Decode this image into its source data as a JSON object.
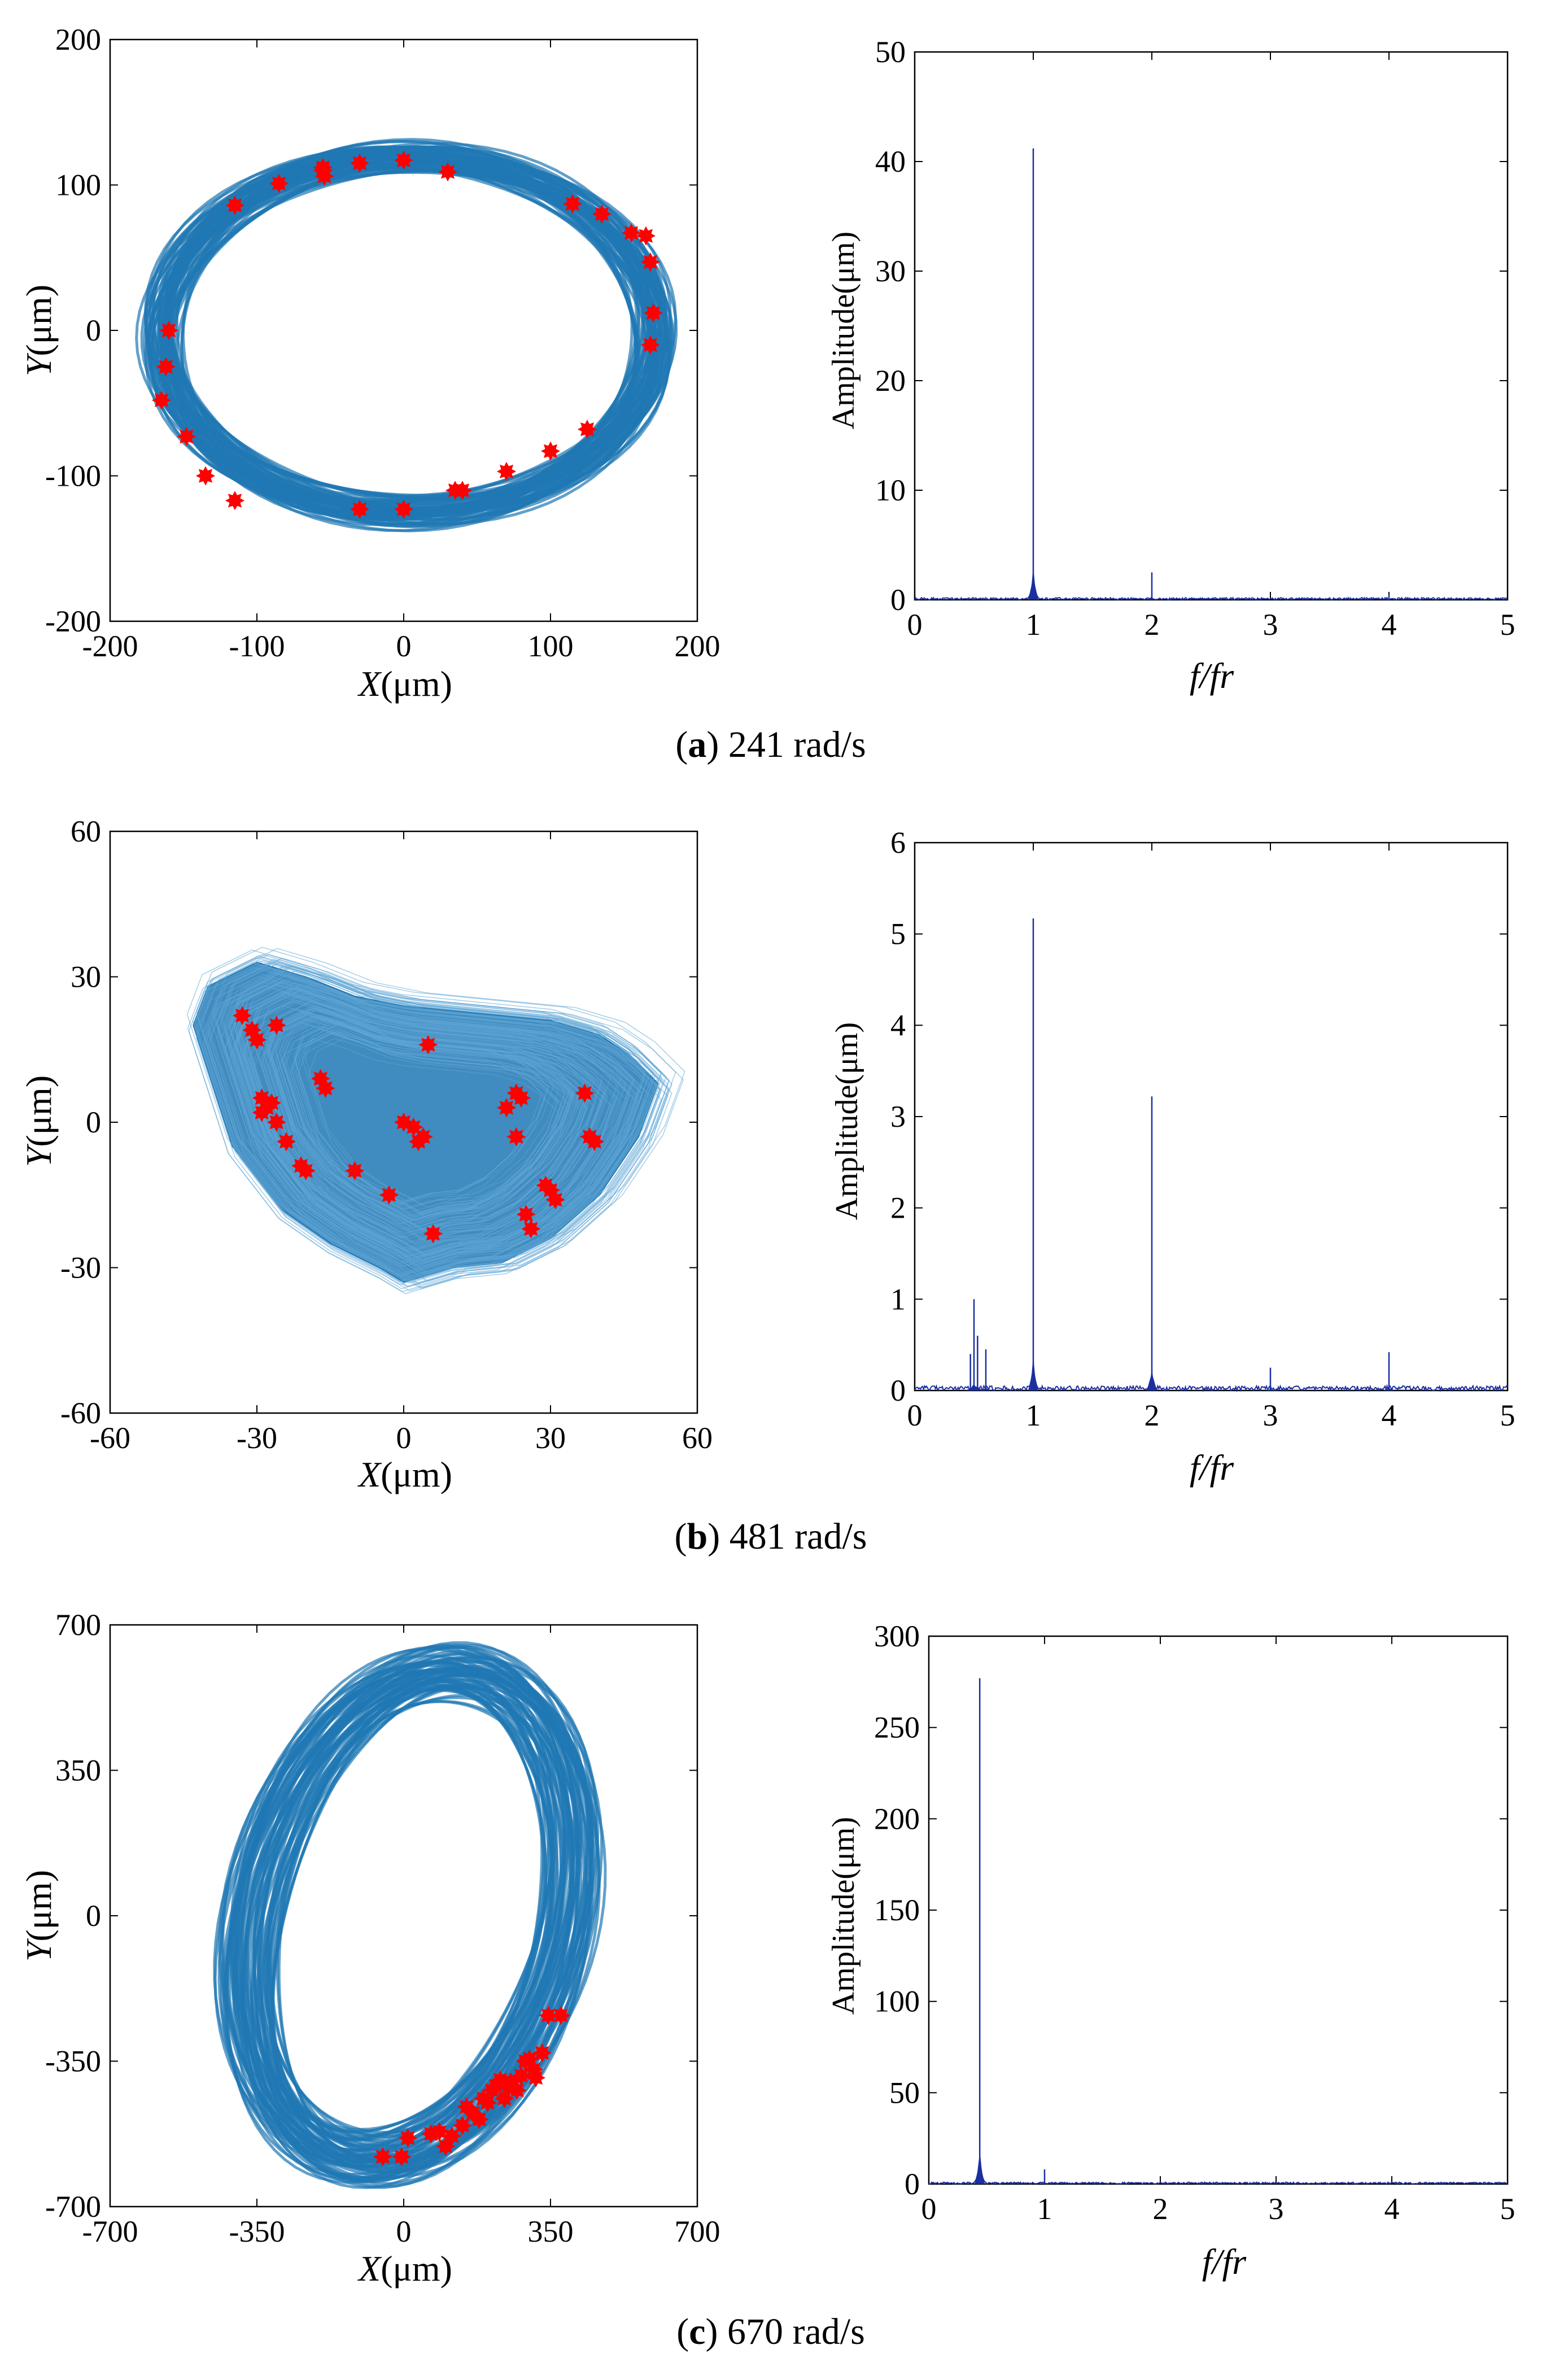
{
  "figure": {
    "rows": [
      {
        "caption": {
          "open": "(",
          "letter": "a",
          "close": ")",
          "text": " 241 rad/s"
        },
        "orbit": {
          "xlabel_var": "X",
          "ylabel_var": "Y",
          "unit": "(μm)"
        },
        "spectrum": {
          "ylabel": "Amplitude(μm)",
          "xlabel": "f/fr"
        }
      },
      {
        "caption": {
          "open": "(",
          "letter": "b",
          "close": ")",
          "text": " 481 rad/s"
        },
        "orbit": {
          "xlabel_var": "X",
          "ylabel_var": "Y",
          "unit": "(μm)"
        },
        "spectrum": {
          "ylabel": "Amplitude(μm)",
          "xlabel": "f/fr"
        }
      },
      {
        "caption": {
          "open": "(",
          "letter": "c",
          "close": ")",
          "text": " 670 rad/s"
        },
        "orbit": {
          "xlabel_var": "X",
          "ylabel_var": "Y",
          "unit": "(μm)"
        },
        "spectrum": {
          "ylabel": "Amplitude(μm)",
          "xlabel": "f/fr"
        }
      }
    ]
  },
  "colors": {
    "orbit_trace": "#1f77b4",
    "poincare_points": "#ff0000",
    "spectrum_line": "#1a2fa0",
    "axes": "#000000"
  },
  "chart_data": [
    {
      "id": "orbit-a",
      "type": "scatter",
      "title": "",
      "xlabel": "X(μm)",
      "ylabel": "Y(μm)",
      "xlim": [
        -200,
        200
      ],
      "ylim": [
        -200,
        200
      ],
      "xticks": [
        -200,
        -100,
        0,
        100,
        200
      ],
      "yticks": [
        -200,
        -100,
        0,
        100,
        200
      ],
      "xtick_labels": [
        "-200",
        "-100",
        "0",
        "100",
        "200"
      ],
      "ytick_labels": [
        "-200",
        "-100",
        "0",
        "100",
        "200"
      ],
      "series": [
        {
          "name": "orbit",
          "kind": "ring",
          "center": [
            3,
            -3
          ],
          "radii": [
            168,
            122
          ],
          "band": 10
        },
        {
          "name": "poincare",
          "kind": "points",
          "x": [
            -160,
            -162,
            -165,
            -148,
            -135,
            -115,
            -115,
            -85,
            -55,
            -54,
            -30,
            0,
            30,
            115,
            135,
            155,
            165,
            168,
            170,
            168,
            -30,
            0,
            35,
            40,
            70,
            100,
            125,
            -55
          ],
          "y": [
            0,
            -25,
            -48,
            -73,
            -100,
            -117,
            86,
            101,
            112,
            106,
            115,
            117,
            109,
            87,
            80,
            67,
            65,
            47,
            12,
            -10,
            -123,
            -123,
            -110,
            -110,
            -97,
            -83,
            -68,
            110
          ]
        }
      ]
    },
    {
      "id": "spectrum-a",
      "type": "line",
      "title": "",
      "xlabel": "f/fr",
      "ylabel": "Amplitude(μm)",
      "xlim": [
        0,
        5
      ],
      "ylim": [
        0,
        50
      ],
      "xticks": [
        0,
        1,
        2,
        3,
        4,
        5
      ],
      "yticks": [
        0,
        10,
        20,
        30,
        40,
        50
      ],
      "xtick_labels": [
        "0",
        "1",
        "2",
        "3",
        "4",
        "5"
      ],
      "ytick_labels": [
        "0",
        "10",
        "20",
        "30",
        "40",
        "50"
      ],
      "peaks": [
        {
          "f": 1.0,
          "amp": 41.2
        },
        {
          "f": 2.0,
          "amp": 2.5
        },
        {
          "f": 4.0,
          "amp": 0.5
        }
      ],
      "noise": 0.2
    },
    {
      "id": "orbit-b",
      "type": "scatter",
      "title": "",
      "xlabel": "X(μm)",
      "ylabel": "Y(μm)",
      "xlim": [
        -60,
        60
      ],
      "ylim": [
        -60,
        60
      ],
      "xticks": [
        -60,
        -30,
        0,
        30,
        60
      ],
      "yticks": [
        -60,
        -30,
        0,
        30,
        60
      ],
      "xtick_labels": [
        "-60",
        "-30",
        "0",
        "30",
        "60"
      ],
      "ytick_labels": [
        "-60",
        "-30",
        "0",
        "30",
        "60"
      ],
      "series": [
        {
          "name": "orbit",
          "kind": "blob",
          "outline_x": [
            -43,
            -40,
            -30,
            -20,
            -10,
            0,
            10,
            20,
            30,
            40,
            46,
            52,
            48,
            40,
            30,
            20,
            10,
            0,
            -5,
            -15,
            -25,
            -35,
            -43
          ],
          "outline_y": [
            20,
            28,
            33,
            30,
            26,
            24,
            23,
            22,
            21,
            18,
            14,
            8,
            -3,
            -15,
            -24,
            -29,
            -30,
            -33,
            -30,
            -25,
            -18,
            -5,
            20
          ]
        },
        {
          "name": "poincare",
          "kind": "points",
          "x": [
            -33,
            -31,
            -30,
            -26,
            -29,
            -28,
            -27,
            -29,
            -26,
            -24,
            -21,
            -20,
            -17,
            -16,
            -10,
            -3,
            0,
            2,
            3,
            4,
            5,
            6,
            21,
            23,
            24,
            23,
            25,
            26,
            29,
            30,
            31,
            37,
            38,
            39,
            38
          ],
          "y": [
            22,
            19,
            17,
            20,
            5,
            3,
            4,
            2,
            0,
            -4,
            -9,
            -10,
            9,
            7,
            -10,
            -15,
            0,
            -1,
            -4,
            -3,
            16,
            -23,
            3,
            6,
            5,
            -3,
            -19,
            -22,
            -13,
            -14,
            -16,
            6,
            -3,
            -4,
            -3
          ]
        }
      ]
    },
    {
      "id": "spectrum-b",
      "type": "line",
      "title": "",
      "xlabel": "f/fr",
      "ylabel": "Amplitude(μm)",
      "xlim": [
        0,
        5
      ],
      "ylim": [
        0,
        6
      ],
      "xticks": [
        0,
        1,
        2,
        3,
        4,
        5
      ],
      "yticks": [
        0,
        1,
        2,
        3,
        4,
        5,
        6
      ],
      "xtick_labels": [
        "0",
        "1",
        "2",
        "3",
        "4",
        "5"
      ],
      "ytick_labels": [
        "0",
        "1",
        "2",
        "3",
        "4",
        "5",
        "6"
      ],
      "peaks": [
        {
          "f": 0.47,
          "amp": 0.4
        },
        {
          "f": 0.5,
          "amp": 1.0
        },
        {
          "f": 0.53,
          "amp": 0.6
        },
        {
          "f": 0.6,
          "amp": 0.45
        },
        {
          "f": 1.0,
          "amp": 5.17
        },
        {
          "f": 2.0,
          "amp": 3.22
        },
        {
          "f": 3.0,
          "amp": 0.25
        },
        {
          "f": 4.0,
          "amp": 0.42
        }
      ],
      "noise": 0.05
    },
    {
      "id": "orbit-c",
      "type": "scatter",
      "title": "",
      "xlabel": "X(μm)",
      "ylabel": "Y(μm)",
      "xlim": [
        -700,
        700
      ],
      "ylim": [
        -700,
        700
      ],
      "xticks": [
        -700,
        -350,
        0,
        350,
        700
      ],
      "yticks": [
        -700,
        -350,
        0,
        350,
        700
      ],
      "xtick_labels": [
        "-700",
        "-350",
        "0",
        "350",
        "700"
      ],
      "ytick_labels": [
        "-700",
        "-350",
        "0",
        "350",
        "700"
      ],
      "series": [
        {
          "name": "orbit",
          "kind": "ring",
          "center": [
            15,
            0
          ],
          "radii": [
            370,
            600
          ],
          "tilt": -15,
          "band": 70
        },
        {
          "name": "poincare",
          "kind": "points",
          "x": [
            -50,
            -5,
            10,
            65,
            85,
            100,
            115,
            140,
            150,
            165,
            180,
            190,
            200,
            210,
            220,
            230,
            240,
            250,
            255,
            270,
            280,
            290,
            300,
            310,
            315,
            330,
            345,
            375
          ],
          "y": [
            -580,
            -580,
            -535,
            -525,
            -520,
            -555,
            -530,
            -505,
            -460,
            -475,
            -490,
            -440,
            -450,
            -420,
            -410,
            -395,
            -440,
            -415,
            -400,
            -420,
            -385,
            -350,
            -345,
            -370,
            -390,
            -330,
            -240,
            -240
          ]
        }
      ]
    },
    {
      "id": "spectrum-c",
      "type": "line",
      "title": "",
      "xlabel": "f/fr",
      "ylabel": "Amplitude(μm)",
      "xlim": [
        0,
        5
      ],
      "ylim": [
        0,
        300
      ],
      "xticks": [
        0,
        1,
        2,
        3,
        4,
        5
      ],
      "yticks": [
        0,
        50,
        100,
        150,
        200,
        250,
        300
      ],
      "xtick_labels": [
        "0",
        "1",
        "2",
        "3",
        "4",
        "5"
      ],
      "ytick_labels": [
        "0",
        "50",
        "100",
        "150",
        "200",
        "250",
        "300"
      ],
      "peaks": [
        {
          "f": 0.44,
          "amp": 277
        },
        {
          "f": 1.0,
          "amp": 8
        }
      ],
      "noise": 1.0
    }
  ]
}
